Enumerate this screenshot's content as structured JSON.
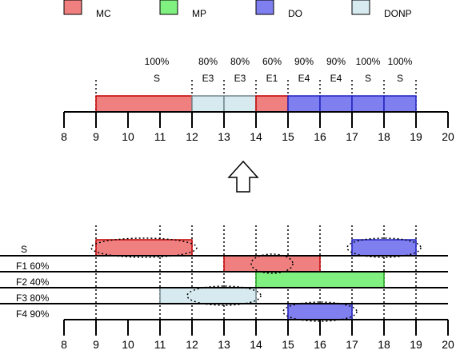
{
  "legend": [
    {
      "label": "MC",
      "color": "#f08080"
    },
    {
      "label": "MP",
      "color": "#80f080"
    },
    {
      "label": "DO",
      "color": "#7f7ff0"
    },
    {
      "label": "DONP",
      "color": "#d6eaf0"
    }
  ],
  "axis": {
    "min": 8,
    "max": 20,
    "ticks": [
      "8",
      "9",
      "10",
      "11",
      "12",
      "13",
      "14",
      "15",
      "16",
      "17",
      "18",
      "19",
      "20"
    ]
  },
  "result_timeline": {
    "segments": [
      {
        "start": 9,
        "end": 12,
        "type": "MC",
        "percent": "100%",
        "code": "S"
      },
      {
        "start": 12,
        "end": 13,
        "type": "DONP",
        "percent": "80%",
        "code": "E3"
      },
      {
        "start": 13,
        "end": 14,
        "type": "DONP",
        "percent": "80%",
        "code": "E3"
      },
      {
        "start": 14,
        "end": 15,
        "type": "MC",
        "percent": "60%",
        "code": "E1"
      },
      {
        "start": 15,
        "end": 16,
        "type": "DO",
        "percent": "90%",
        "code": "E4"
      },
      {
        "start": 16,
        "end": 17,
        "type": "DO",
        "percent": "90%",
        "code": "E4"
      },
      {
        "start": 17,
        "end": 18,
        "type": "DO",
        "percent": "100%",
        "code": "S"
      },
      {
        "start": 18,
        "end": 19,
        "type": "DO",
        "percent": "100%",
        "code": "S"
      }
    ],
    "dotted_marks": [
      9,
      12,
      13,
      14,
      15,
      16,
      17,
      18,
      19
    ]
  },
  "input_rows": [
    {
      "label": "S",
      "bars": [
        {
          "start": 9,
          "end": 12,
          "type": "MC"
        },
        {
          "start": 17,
          "end": 19,
          "type": "DO"
        }
      ]
    },
    {
      "label": "F1  60%",
      "bars": [
        {
          "start": 13,
          "end": 16,
          "type": "MC"
        }
      ]
    },
    {
      "label": "F2  40%",
      "bars": [
        {
          "start": 14,
          "end": 18,
          "type": "MP"
        }
      ]
    },
    {
      "label": "F3  80%",
      "bars": [
        {
          "start": 11,
          "end": 14,
          "type": "DONP"
        }
      ]
    },
    {
      "label": "F4  90%",
      "bars": [
        {
          "start": 15,
          "end": 17,
          "type": "DO"
        }
      ]
    }
  ],
  "selected": [
    {
      "row": 0,
      "start": 9,
      "end": 12
    },
    {
      "row": 0,
      "start": 17,
      "end": 19
    },
    {
      "row": 1,
      "start": 14,
      "end": 15
    },
    {
      "row": 3,
      "start": 12,
      "end": 14
    },
    {
      "row": 4,
      "start": 15,
      "end": 17
    }
  ],
  "input_dotted_marks": [
    9,
    11,
    12,
    13,
    14,
    15,
    16,
    17,
    18,
    19
  ],
  "colors": {
    "MC": "#f08080",
    "MP": "#80f080",
    "DO": "#7f7ff0",
    "DONP": "#d6eaf0",
    "MC_stroke": "#c00000",
    "MP_stroke": "#20a020",
    "DO_stroke": "#2020c0",
    "DONP_stroke": "#708890"
  }
}
